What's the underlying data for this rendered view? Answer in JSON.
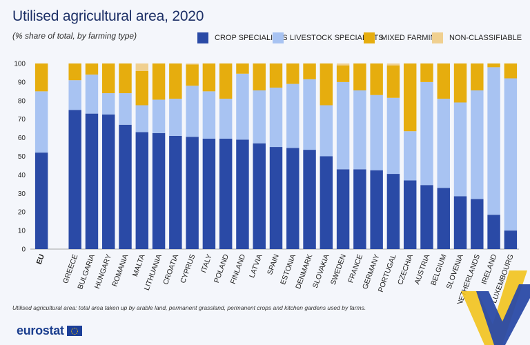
{
  "title": "Utilised agricultural area, 2020",
  "subtitle": "(% share of total, by farming type)",
  "footnote": "Utilised agricultural area: total area taken up by arable land, permanent grassland, permanent crops and kitchen gardens used by farms.",
  "logo": {
    "text": "eurostat"
  },
  "colors": {
    "crop": "#2a4aa6",
    "livestock": "#a8c3f2",
    "mixed": "#e6ad0e",
    "nonclass": "#f0d090",
    "text": "#1f2a44",
    "background": "#f4f6fb"
  },
  "legend": [
    {
      "label": "CROP SPECIALISTS",
      "color": "#2a4aa6"
    },
    {
      "label": "LIVESTOCK SPECIALISTS",
      "color": "#a8c3f2"
    },
    {
      "label": "MIXED FARMING",
      "color": "#e6ad0e"
    },
    {
      "label": "NON-CLASSIFIABLE",
      "color": "#f0d090"
    }
  ],
  "chart_data": {
    "type": "bar",
    "stacked": true,
    "ylim": [
      0,
      100
    ],
    "yticks": [
      0,
      10,
      20,
      30,
      40,
      50,
      60,
      70,
      80,
      90,
      100
    ],
    "grid": false,
    "legend_position": "top-right",
    "categories": [
      "EU",
      "",
      "GREECE",
      "BULGARIA",
      "HUNGARY",
      "ROMANIA",
      "MALTA",
      "LITHUANIA",
      "CROATIA",
      "CYPRUS",
      "ITALY",
      "POLAND",
      "FINLAND",
      "LATVIA",
      "SPAIN",
      "ESTONIA",
      "DENMARK",
      "SLOVAKIA",
      "SWEDEN",
      "FRANCE",
      "GERMANY",
      "PORTUGAL",
      "CZECHIA",
      "AUSTRIA",
      "BELGIUM",
      "SLOVENIA",
      "NETHERLANDS",
      "IRELAND",
      "LUXEMBOURG"
    ],
    "series": [
      {
        "name": "CROP SPECIALISTS",
        "color": "#2a4aa6",
        "values": [
          52,
          null,
          75,
          73,
          72.5,
          67,
          63,
          62.5,
          61,
          60.5,
          59.5,
          59.5,
          59,
          57,
          55,
          54.5,
          53.5,
          50,
          43,
          43,
          42.5,
          40.5,
          37,
          34.5,
          33,
          28.5,
          27,
          18.5,
          10
        ]
      },
      {
        "name": "LIVESTOCK SPECIALISTS",
        "color": "#a8c3f2",
        "values": [
          33,
          null,
          16,
          21,
          11.5,
          17,
          14.5,
          18,
          20,
          27.5,
          25.5,
          21.5,
          35.5,
          28.5,
          32,
          34.5,
          38,
          27.5,
          47,
          42.5,
          40.5,
          41,
          26.5,
          55.5,
          48,
          50.5,
          58.5,
          79.5,
          82
        ]
      },
      {
        "name": "MIXED FARMING",
        "color": "#e6ad0e",
        "values": [
          15,
          null,
          9,
          6,
          16,
          16,
          18.5,
          19.5,
          19,
          11.5,
          15,
          19,
          5.5,
          14.5,
          13,
          11,
          8.5,
          22.5,
          9,
          14.5,
          17,
          17.5,
          36.5,
          10,
          19,
          21,
          14.5,
          2,
          8
        ]
      },
      {
        "name": "NON-CLASSIFIABLE",
        "color": "#f0d090",
        "values": [
          0,
          null,
          0,
          0,
          0,
          0,
          4,
          0,
          0,
          0.5,
          0,
          0,
          0,
          0,
          0,
          0,
          0,
          0,
          1,
          0,
          0,
          1,
          0,
          0,
          0,
          0,
          0,
          0,
          0
        ]
      }
    ]
  }
}
